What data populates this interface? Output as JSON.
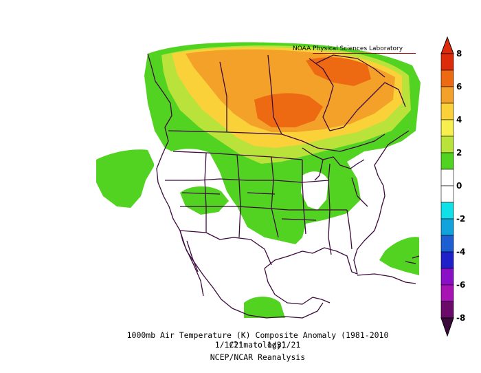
{
  "credit": "NOAA Physical Sciences Laboratory",
  "caption": {
    "line1": "1000mb Air Temperature (K) Composite Anomaly (1981-2010 Climatology)",
    "line2": "1/1/21  to 1/31/21",
    "line3": "NCEP/NCAR Reanalysis"
  },
  "colorbar": {
    "levels": [
      8,
      7,
      6,
      5,
      4,
      3,
      2,
      1,
      0,
      -1,
      -2,
      -3,
      -4,
      -5,
      -6,
      -7,
      -8
    ],
    "colors": [
      "#dc2a0a",
      "#ee6a12",
      "#f4a12a",
      "#fbd13a",
      "#f7ef50",
      "#b9e33a",
      "#52d321",
      "#ffffff",
      "#ffffff",
      "#10e0e8",
      "#12a3dc",
      "#1d5fd2",
      "#2020c8",
      "#8a10c8",
      "#a814b4",
      "#6a0a6a"
    ],
    "tick_labels": [
      "8",
      "6",
      "4",
      "2",
      "0",
      "-2",
      "-4",
      "-6",
      "-8"
    ],
    "top_arrow_color": "#dc2a0a",
    "bottom_arrow_color": "#3a0a3a"
  }
}
